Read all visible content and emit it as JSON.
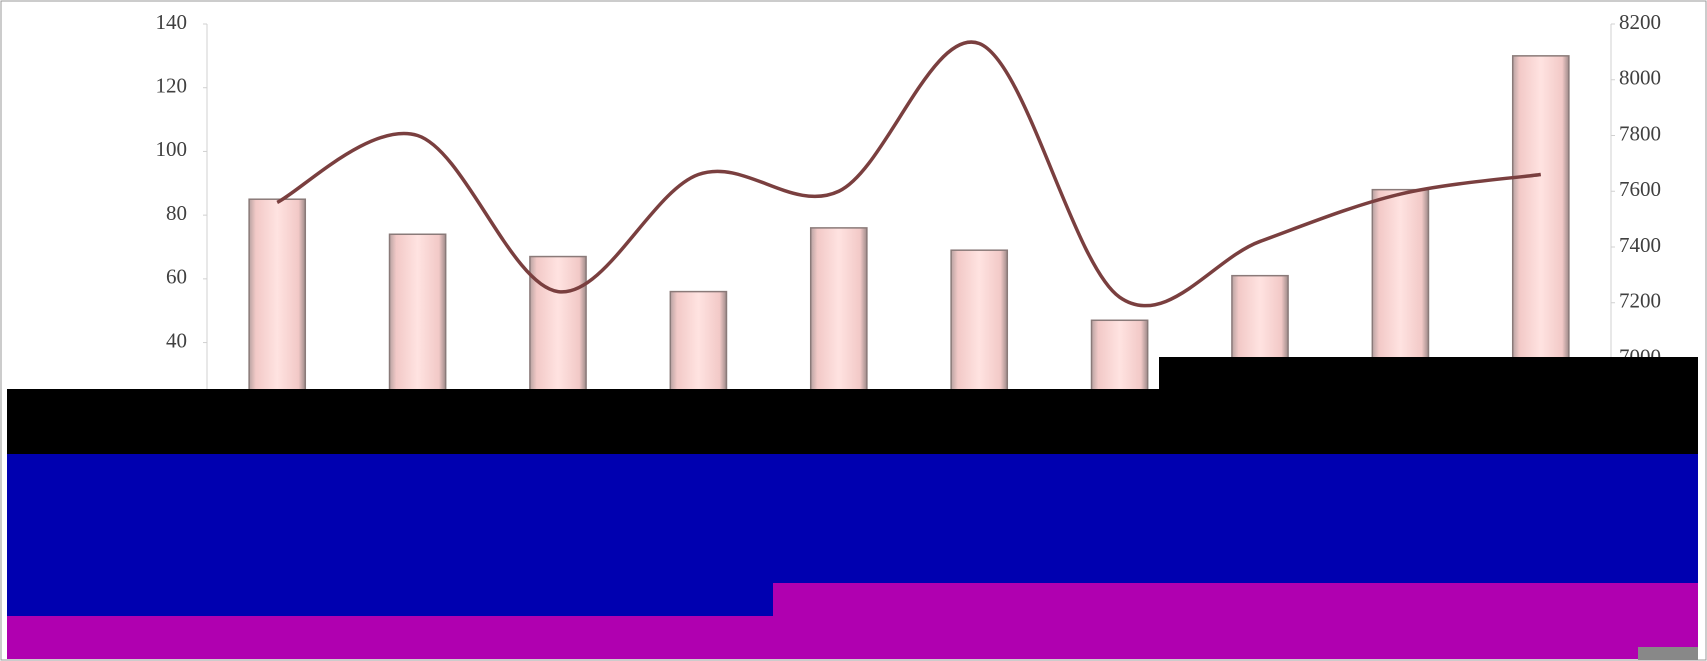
{
  "chart_data": {
    "type": "bar-line",
    "categories": [
      null,
      null,
      null,
      null,
      null,
      null,
      null,
      null,
      null,
      null
    ],
    "series": [
      {
        "type": "bar",
        "color": "#f9d0ce",
        "values": [
          85,
          74,
          67,
          56,
          76,
          69,
          47,
          61,
          88,
          130
        ]
      },
      {
        "type": "line",
        "axis": "y2",
        "color": "#7a3f3f",
        "values": [
          7560,
          7800,
          7240,
          7660,
          7600,
          8130,
          7220,
          7420,
          7590,
          7660
        ]
      }
    ],
    "ylim": [
      0,
      140
    ],
    "yticks": [
      40,
      60,
      80,
      100,
      120,
      140
    ],
    "y2lim": [
      6600,
      8200
    ],
    "y2ticks": [
      7000,
      7200,
      7400,
      7600,
      7800,
      8000,
      8200
    ]
  }
}
